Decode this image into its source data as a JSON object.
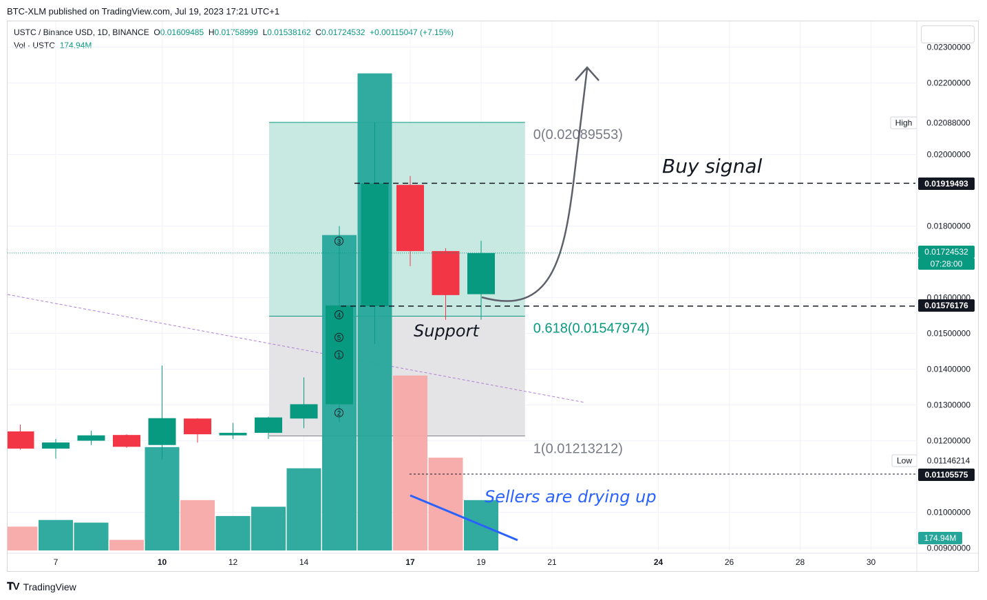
{
  "header": {
    "published": "BTC-XLM published on TradingView.com, Jul 19, 2023 17:21 UTC+1"
  },
  "legend": {
    "symbol": "USTC / Binance USD, 1D, BINANCE",
    "o_label": "O",
    "o_value": "0.01609485",
    "h_label": "H",
    "h_value": "0.01758999",
    "l_label": "L",
    "l_value": "0.01538162",
    "c_label": "C",
    "c_value": "0.01724532",
    "change": "+0.00115047 (+7.15%)",
    "vol_label": "Vol · USTC",
    "vol_value": "174.94M"
  },
  "brand": {
    "name": "TradingView"
  },
  "colors": {
    "up": "#089981",
    "down": "#f23645",
    "vol_up": "#26a69a",
    "vol_down": "#f7a9a7",
    "fib_top": "#c5e7e0",
    "fib_bottom": "#e3e3e6"
  },
  "chart_data": {
    "type": "candlestick",
    "price_axis": {
      "ticks": [
        "0.02300000",
        "0.02200000",
        "0.02000000",
        "0.01800000",
        "0.01600000",
        "0.01500000",
        "0.01400000",
        "0.01300000",
        "0.01200000",
        "0.01000000",
        "0.00900000"
      ],
      "ylim": [
        0.009,
        0.0233
      ]
    },
    "x_axis": {
      "ticks": [
        {
          "day": 7,
          "label": "7"
        },
        {
          "day": 10,
          "label": "10"
        },
        {
          "day": 12,
          "label": "12"
        },
        {
          "day": 14,
          "label": "14"
        },
        {
          "day": 17,
          "label": "17"
        },
        {
          "day": 19,
          "label": "19"
        },
        {
          "day": 21,
          "label": "21"
        },
        {
          "day": 24,
          "label": "24"
        },
        {
          "day": 26,
          "label": "26"
        },
        {
          "day": 28,
          "label": "28"
        },
        {
          "day": 30,
          "label": "30"
        }
      ],
      "bold": [
        10,
        17,
        24
      ]
    },
    "candles": [
      {
        "day": 6,
        "o": 0.01226,
        "h": 0.01245,
        "l": 0.01175,
        "c": 0.01178
      },
      {
        "day": 7,
        "o": 0.01178,
        "h": 0.01205,
        "l": 0.0115,
        "c": 0.01195
      },
      {
        "day": 8,
        "o": 0.012,
        "h": 0.01228,
        "l": 0.01188,
        "c": 0.01215
      },
      {
        "day": 9,
        "o": 0.01216,
        "h": 0.01218,
        "l": 0.0118,
        "c": 0.01183
      },
      {
        "day": 10,
        "o": 0.01188,
        "h": 0.0141,
        "l": 0.01148,
        "c": 0.01263
      },
      {
        "day": 11,
        "o": 0.01262,
        "h": 0.01263,
        "l": 0.01195,
        "c": 0.01218
      },
      {
        "day": 12,
        "o": 0.01215,
        "h": 0.0125,
        "l": 0.01205,
        "c": 0.01222
      },
      {
        "day": 13,
        "o": 0.01222,
        "h": 0.01267,
        "l": 0.01205,
        "c": 0.01265
      },
      {
        "day": 14,
        "o": 0.01262,
        "h": 0.01377,
        "l": 0.01235,
        "c": 0.01302
      },
      {
        "day": 15,
        "o": 0.01302,
        "h": 0.018,
        "l": 0.01252,
        "c": 0.01578
      },
      {
        "day": 16,
        "o": 0.01576,
        "h": 0.0209,
        "l": 0.0147,
        "c": 0.01919
      },
      {
        "day": 17,
        "o": 0.01915,
        "h": 0.0194,
        "l": 0.01688,
        "c": 0.0173
      },
      {
        "day": 18,
        "o": 0.0173,
        "h": 0.01738,
        "l": 0.01538,
        "c": 0.01607
      },
      {
        "day": 19,
        "o": 0.01609485,
        "h": 0.01758999,
        "l": 0.01538162,
        "c": 0.01724532
      }
    ],
    "volume": [
      {
        "day": 6,
        "v": 18,
        "up": false
      },
      {
        "day": 7,
        "v": 23,
        "up": true
      },
      {
        "day": 8,
        "v": 21,
        "up": true
      },
      {
        "day": 9,
        "v": 8,
        "up": false
      },
      {
        "day": 10,
        "v": 78,
        "up": true
      },
      {
        "day": 11,
        "v": 38,
        "up": false
      },
      {
        "day": 12,
        "v": 26,
        "up": true
      },
      {
        "day": 13,
        "v": 33,
        "up": true
      },
      {
        "day": 14,
        "v": 62,
        "up": true
      },
      {
        "day": 15,
        "v": 238,
        "up": true
      },
      {
        "day": 16,
        "v": 360,
        "up": true
      },
      {
        "day": 17,
        "v": 132,
        "up": false
      },
      {
        "day": 18,
        "v": 70,
        "up": false
      },
      {
        "day": 19,
        "v": 38,
        "up": true
      }
    ],
    "price_labels": {
      "high_label": "High",
      "high_value": "0.02088000",
      "low_label": "Low",
      "low_value": "0.01146214",
      "buy_level": "0.01919493",
      "support_level": "0.01576176",
      "current_price": "0.01724532",
      "countdown": "07:28:00",
      "low_dashed": "0.01105575",
      "volume": "174.94M"
    },
    "fib": {
      "level0": "0(0.02089553)",
      "level618": "0.618(0.01547974)",
      "level1": "1(0.01213212)",
      "p0": 0.02089553,
      "p618": 0.01547974,
      "p1": 0.01213212,
      "day_start": 13.0,
      "day_end": 20.2
    },
    "annotations": {
      "buy_signal": "Buy signal",
      "support": "Support",
      "sellers": "Sellers are drying up",
      "markers": [
        "3",
        "4",
        "5",
        "1",
        "2"
      ]
    }
  }
}
